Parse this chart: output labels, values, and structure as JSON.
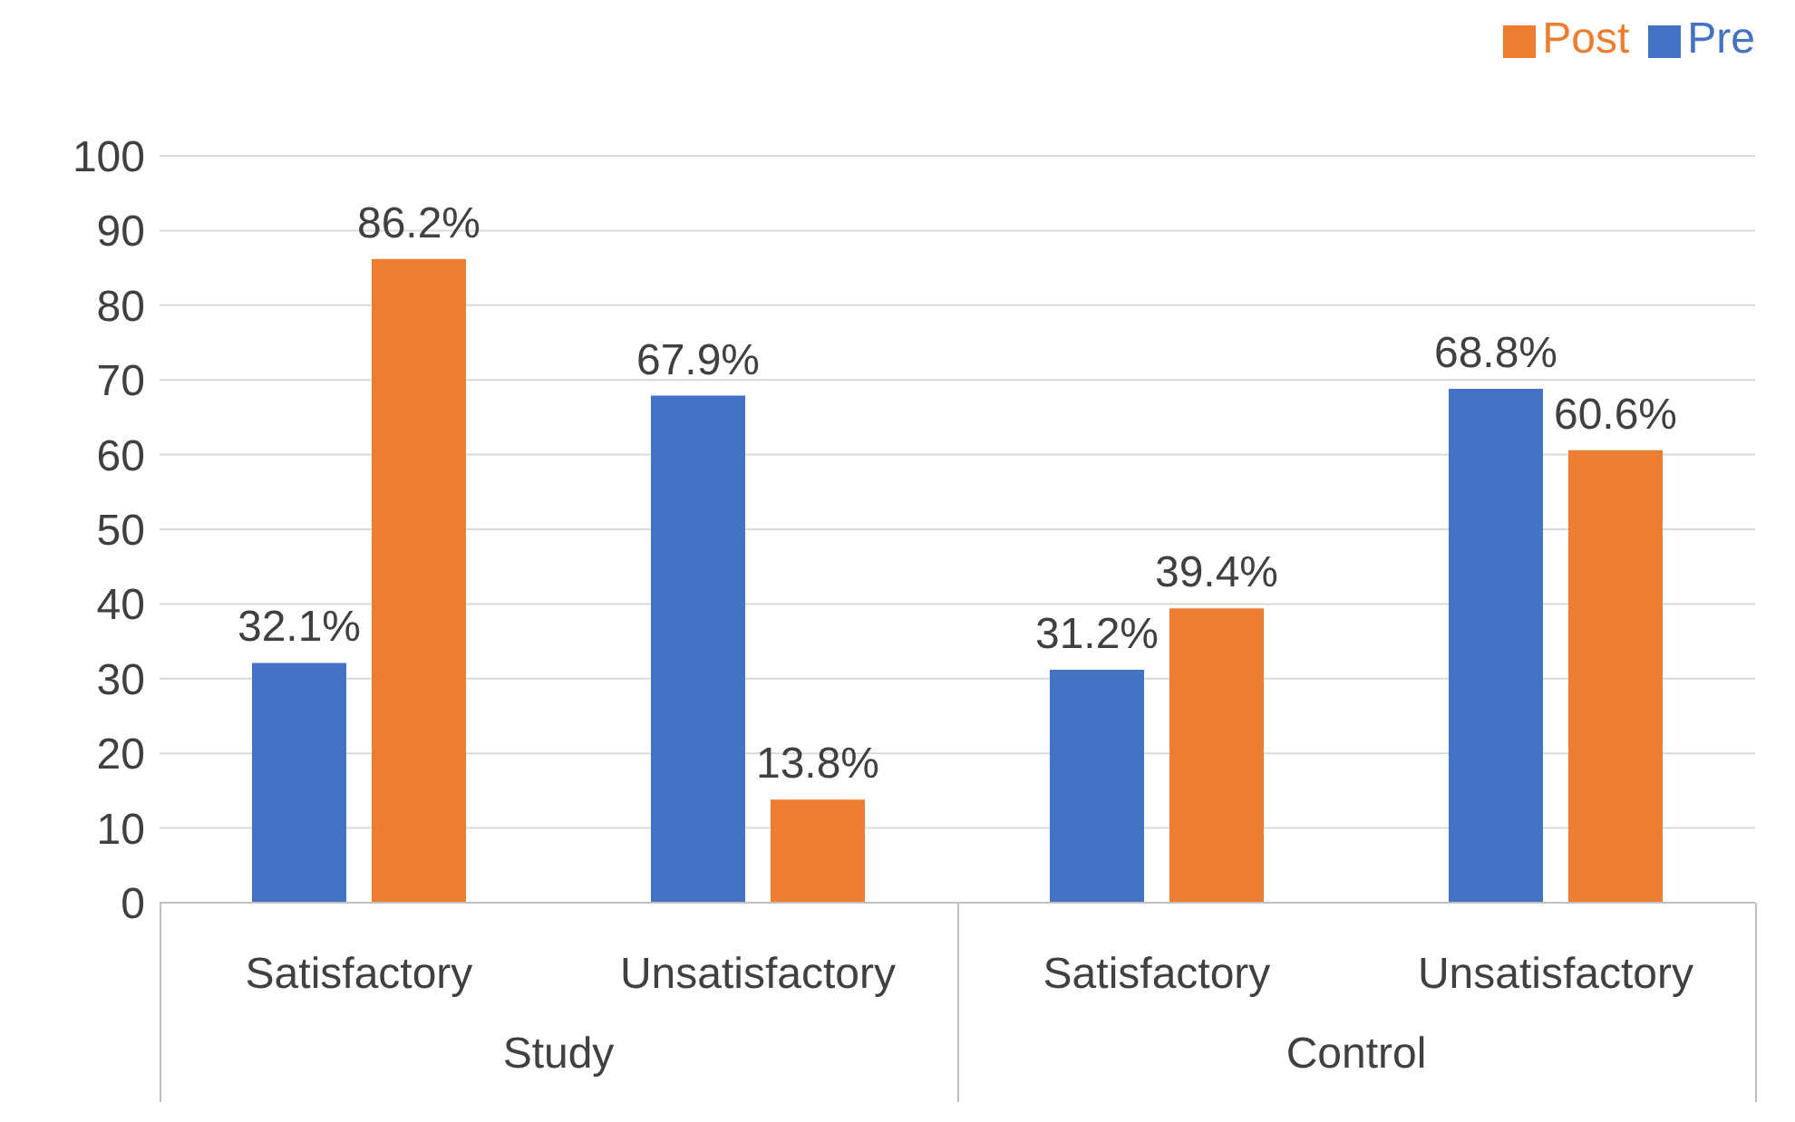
{
  "chart_data": {
    "type": "bar",
    "categories": [
      "Satisfactory",
      "Unsatisfactory",
      "Satisfactory",
      "Unsatisfactory"
    ],
    "series": [
      {
        "name": "Pre",
        "color": "#4472c4",
        "values": [
          32.1,
          67.9,
          31.2,
          68.8
        ],
        "value_labels": [
          "32.1%",
          "67.9%",
          "31.2%",
          "68.8%"
        ]
      },
      {
        "name": "Post",
        "color": "#ed7d31",
        "values": [
          86.2,
          13.8,
          39.4,
          60.6
        ],
        "value_labels": [
          "86.2%",
          "13.8%",
          "39.4%",
          "60.6%"
        ]
      }
    ],
    "annotations": [
      "Study",
      "Control"
    ],
    "ylim": [
      0,
      100
    ],
    "yticks": [
      0,
      10,
      20,
      30,
      40,
      50,
      60,
      70,
      80,
      90,
      100
    ],
    "grid": "y",
    "legend": "top right"
  }
}
